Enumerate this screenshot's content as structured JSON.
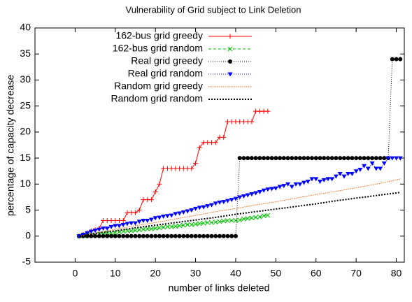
{
  "chart_data": {
    "type": "line",
    "title": "Vulnerability of Grid subject to Link Deletion",
    "xlabel": "number of links deleted",
    "ylabel": "percentage of capacity decrease",
    "xlim": [
      -10,
      82
    ],
    "xticks": [
      0,
      10,
      20,
      30,
      40,
      50,
      60,
      70,
      80
    ],
    "ylim": [
      -5,
      40
    ],
    "yticks": [
      -5,
      0,
      5,
      10,
      15,
      20,
      25,
      30,
      35,
      40
    ],
    "legend": "upper left",
    "series": [
      {
        "name": "162-bus grid greedy",
        "color": "#ff0000",
        "marker": "plus",
        "dash": "solid",
        "x": [
          1,
          2,
          3,
          4,
          5,
          6,
          7,
          8,
          9,
          10,
          11,
          12,
          13,
          14,
          15,
          16,
          17,
          18,
          19,
          20,
          21,
          22,
          23,
          24,
          25,
          26,
          27,
          28,
          29,
          30,
          31,
          32,
          33,
          34,
          35,
          36,
          37,
          38,
          39,
          40,
          41,
          42,
          43,
          44,
          45,
          46,
          47,
          48
        ],
        "values": [
          0,
          0.3,
          0.6,
          1,
          1.2,
          1.5,
          3,
          3,
          3,
          3,
          3,
          3,
          4.5,
          4.5,
          4.5,
          5,
          7,
          7,
          7,
          8.5,
          10,
          13,
          13,
          13,
          13,
          13,
          13,
          13,
          13,
          14,
          17,
          18,
          18,
          18,
          18,
          19,
          19,
          22,
          22,
          22,
          22,
          22,
          22,
          22,
          24,
          24,
          24,
          24
        ]
      },
      {
        "name": "162-bus grid random",
        "color": "#00c000",
        "marker": "cross",
        "dash": "dashed",
        "x": [
          1,
          2,
          3,
          4,
          5,
          6,
          7,
          8,
          9,
          10,
          11,
          12,
          13,
          14,
          15,
          16,
          17,
          18,
          19,
          20,
          21,
          22,
          23,
          24,
          25,
          26,
          27,
          28,
          29,
          30,
          31,
          32,
          33,
          34,
          35,
          36,
          37,
          38,
          39,
          40,
          41,
          42,
          43,
          44,
          45,
          46,
          47,
          48
        ],
        "values": [
          0,
          0.1,
          0.2,
          0.2,
          0.3,
          0.4,
          0.5,
          0.6,
          0.6,
          0.7,
          0.8,
          0.9,
          1,
          1,
          1.1,
          1.2,
          1.3,
          1.4,
          1.4,
          1.5,
          1.6,
          1.7,
          1.8,
          1.8,
          1.9,
          2,
          2.1,
          2.2,
          2.2,
          2.3,
          2.4,
          2.5,
          2.6,
          2.6,
          2.7,
          2.8,
          2.9,
          3,
          3,
          3,
          3.1,
          3.3,
          3.4,
          3.5,
          3.6,
          3.7,
          3.9,
          4
        ]
      },
      {
        "name": "Real grid greedy",
        "color": "#000000",
        "marker": "circle",
        "dash": "dotted",
        "x": [
          1,
          2,
          3,
          4,
          5,
          6,
          7,
          8,
          9,
          10,
          11,
          12,
          13,
          14,
          15,
          16,
          17,
          18,
          19,
          20,
          21,
          22,
          23,
          24,
          25,
          26,
          27,
          28,
          29,
          30,
          31,
          32,
          33,
          34,
          35,
          36,
          37,
          38,
          39,
          40,
          41,
          42,
          43,
          44,
          45,
          46,
          47,
          48,
          49,
          50,
          51,
          52,
          53,
          54,
          55,
          56,
          57,
          58,
          59,
          60,
          61,
          62,
          63,
          64,
          65,
          66,
          67,
          68,
          69,
          70,
          71,
          72,
          73,
          74,
          75,
          76,
          77,
          78,
          79,
          80,
          81
        ],
        "values": [
          0,
          0,
          0,
          0,
          0,
          0,
          0,
          0,
          0,
          0,
          0,
          0,
          0,
          0,
          0,
          0,
          0,
          0,
          0,
          0,
          0,
          0,
          0,
          0,
          0,
          0,
          0,
          0,
          0,
          0,
          0,
          0,
          0,
          0,
          0,
          0,
          0,
          0,
          0,
          0,
          15,
          15,
          15,
          15,
          15,
          15,
          15,
          15,
          15,
          15,
          15,
          15,
          15,
          15,
          15,
          15,
          15,
          15,
          15,
          15,
          15,
          15,
          15,
          15,
          15,
          15,
          15,
          15,
          15,
          15,
          15,
          15,
          15,
          15,
          15,
          15,
          15,
          15,
          34,
          34,
          34
        ]
      },
      {
        "name": "Real grid random",
        "color": "#0000ff",
        "marker": "triangle",
        "dash": "dotted",
        "x": [
          1,
          2,
          3,
          4,
          5,
          6,
          7,
          8,
          9,
          10,
          11,
          12,
          13,
          14,
          15,
          16,
          17,
          18,
          19,
          20,
          21,
          22,
          23,
          24,
          25,
          26,
          27,
          28,
          29,
          30,
          31,
          32,
          33,
          34,
          35,
          36,
          37,
          38,
          39,
          40,
          41,
          42,
          43,
          44,
          45,
          46,
          47,
          48,
          49,
          50,
          51,
          52,
          53,
          54,
          55,
          56,
          57,
          58,
          59,
          60,
          61,
          62,
          63,
          64,
          65,
          66,
          67,
          68,
          69,
          70,
          71,
          72,
          73,
          74,
          75,
          76,
          77,
          78,
          79,
          80,
          81
        ],
        "values": [
          0,
          0.3,
          0.6,
          0.9,
          1.1,
          1.3,
          1.5,
          1.5,
          1.8,
          2,
          2,
          2.2,
          2.4,
          2.5,
          2.5,
          2.8,
          3,
          3,
          3.2,
          3.5,
          3.6,
          3.8,
          3.9,
          4,
          4.3,
          4.4,
          4.6,
          4.8,
          5,
          5.3,
          5.5,
          5.6,
          5.8,
          6,
          6.3,
          6.5,
          6.6,
          6.8,
          7,
          7.2,
          7.5,
          7.7,
          7.9,
          8.1,
          8.3,
          8.5,
          8.8,
          9,
          9.1,
          9.2,
          9.5,
          9.7,
          10,
          9.5,
          10,
          10,
          10.3,
          10.5,
          11,
          11,
          10.5,
          10.8,
          11,
          11,
          11.5,
          12,
          11.5,
          12,
          12,
          12.5,
          12.8,
          13.5,
          13,
          14,
          13,
          13,
          14,
          15,
          15,
          15,
          15
        ]
      },
      {
        "name": "Random grid greedy",
        "color": "#ff6000",
        "marker": "none",
        "dash": "fine",
        "x": [
          1,
          5,
          10,
          15,
          20,
          25,
          30,
          35,
          40,
          45,
          50,
          55,
          60,
          65,
          70,
          75,
          80,
          81
        ],
        "values": [
          0,
          0.6,
          1.3,
          2,
          2.6,
          3.3,
          4,
          4.7,
          5.3,
          6,
          6.6,
          7.3,
          8,
          8.6,
          9.3,
          10,
          10.8,
          11
        ]
      },
      {
        "name": "Random grid random",
        "color": "#000000",
        "marker": "none",
        "dash": "dotted-thick",
        "x": [
          1,
          5,
          10,
          15,
          20,
          25,
          30,
          35,
          40,
          45,
          50,
          55,
          60,
          65,
          70,
          75,
          80,
          81
        ],
        "values": [
          0,
          0.5,
          1,
          1.6,
          2.1,
          2.6,
          3.1,
          3.6,
          4.2,
          4.7,
          5.2,
          5.7,
          6.2,
          6.8,
          7.3,
          7.8,
          8.3,
          8.4
        ]
      }
    ]
  }
}
